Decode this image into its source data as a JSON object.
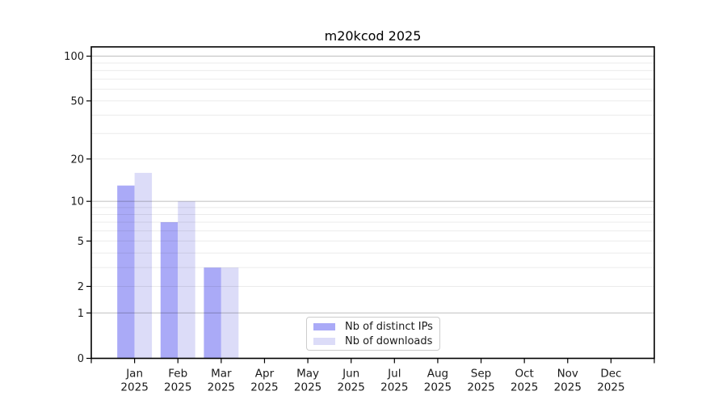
{
  "chart_data": {
    "type": "bar",
    "title": "m20kcod 2025",
    "year_label": "2025",
    "categories": [
      "Jan",
      "Feb",
      "Mar",
      "Apr",
      "May",
      "Jun",
      "Jul",
      "Aug",
      "Sep",
      "Oct",
      "Nov",
      "Dec"
    ],
    "series": [
      {
        "name": "Nb of distinct IPs",
        "color": "#aaaaf7",
        "values": [
          13,
          7,
          3,
          0,
          0,
          0,
          0,
          0,
          0,
          0,
          0,
          0
        ]
      },
      {
        "name": "Nb of downloads",
        "color": "#dcdcf8",
        "values": [
          16,
          10,
          3,
          0,
          0,
          0,
          0,
          0,
          0,
          0,
          0,
          0
        ]
      }
    ],
    "y_axis": {
      "scale": "log1p",
      "tick_values": [
        0,
        1,
        2,
        5,
        10,
        20,
        50,
        100
      ],
      "major_gridlines": [
        1,
        10,
        100
      ],
      "minor_gridlines": [
        2,
        3,
        4,
        5,
        6,
        7,
        8,
        9,
        20,
        30,
        40,
        50,
        60,
        70,
        80,
        90
      ]
    },
    "legend": {
      "position": "bottom-center-inside"
    },
    "colors": {
      "spine": "#000000",
      "major_grid_rgba": "rgba(0,0,0,0.22)",
      "minor_grid_rgba": "rgba(0,0,0,0.08)",
      "text": "#1a1a1a",
      "legend_border": "#cccccc",
      "background": "#ffffff"
    }
  }
}
